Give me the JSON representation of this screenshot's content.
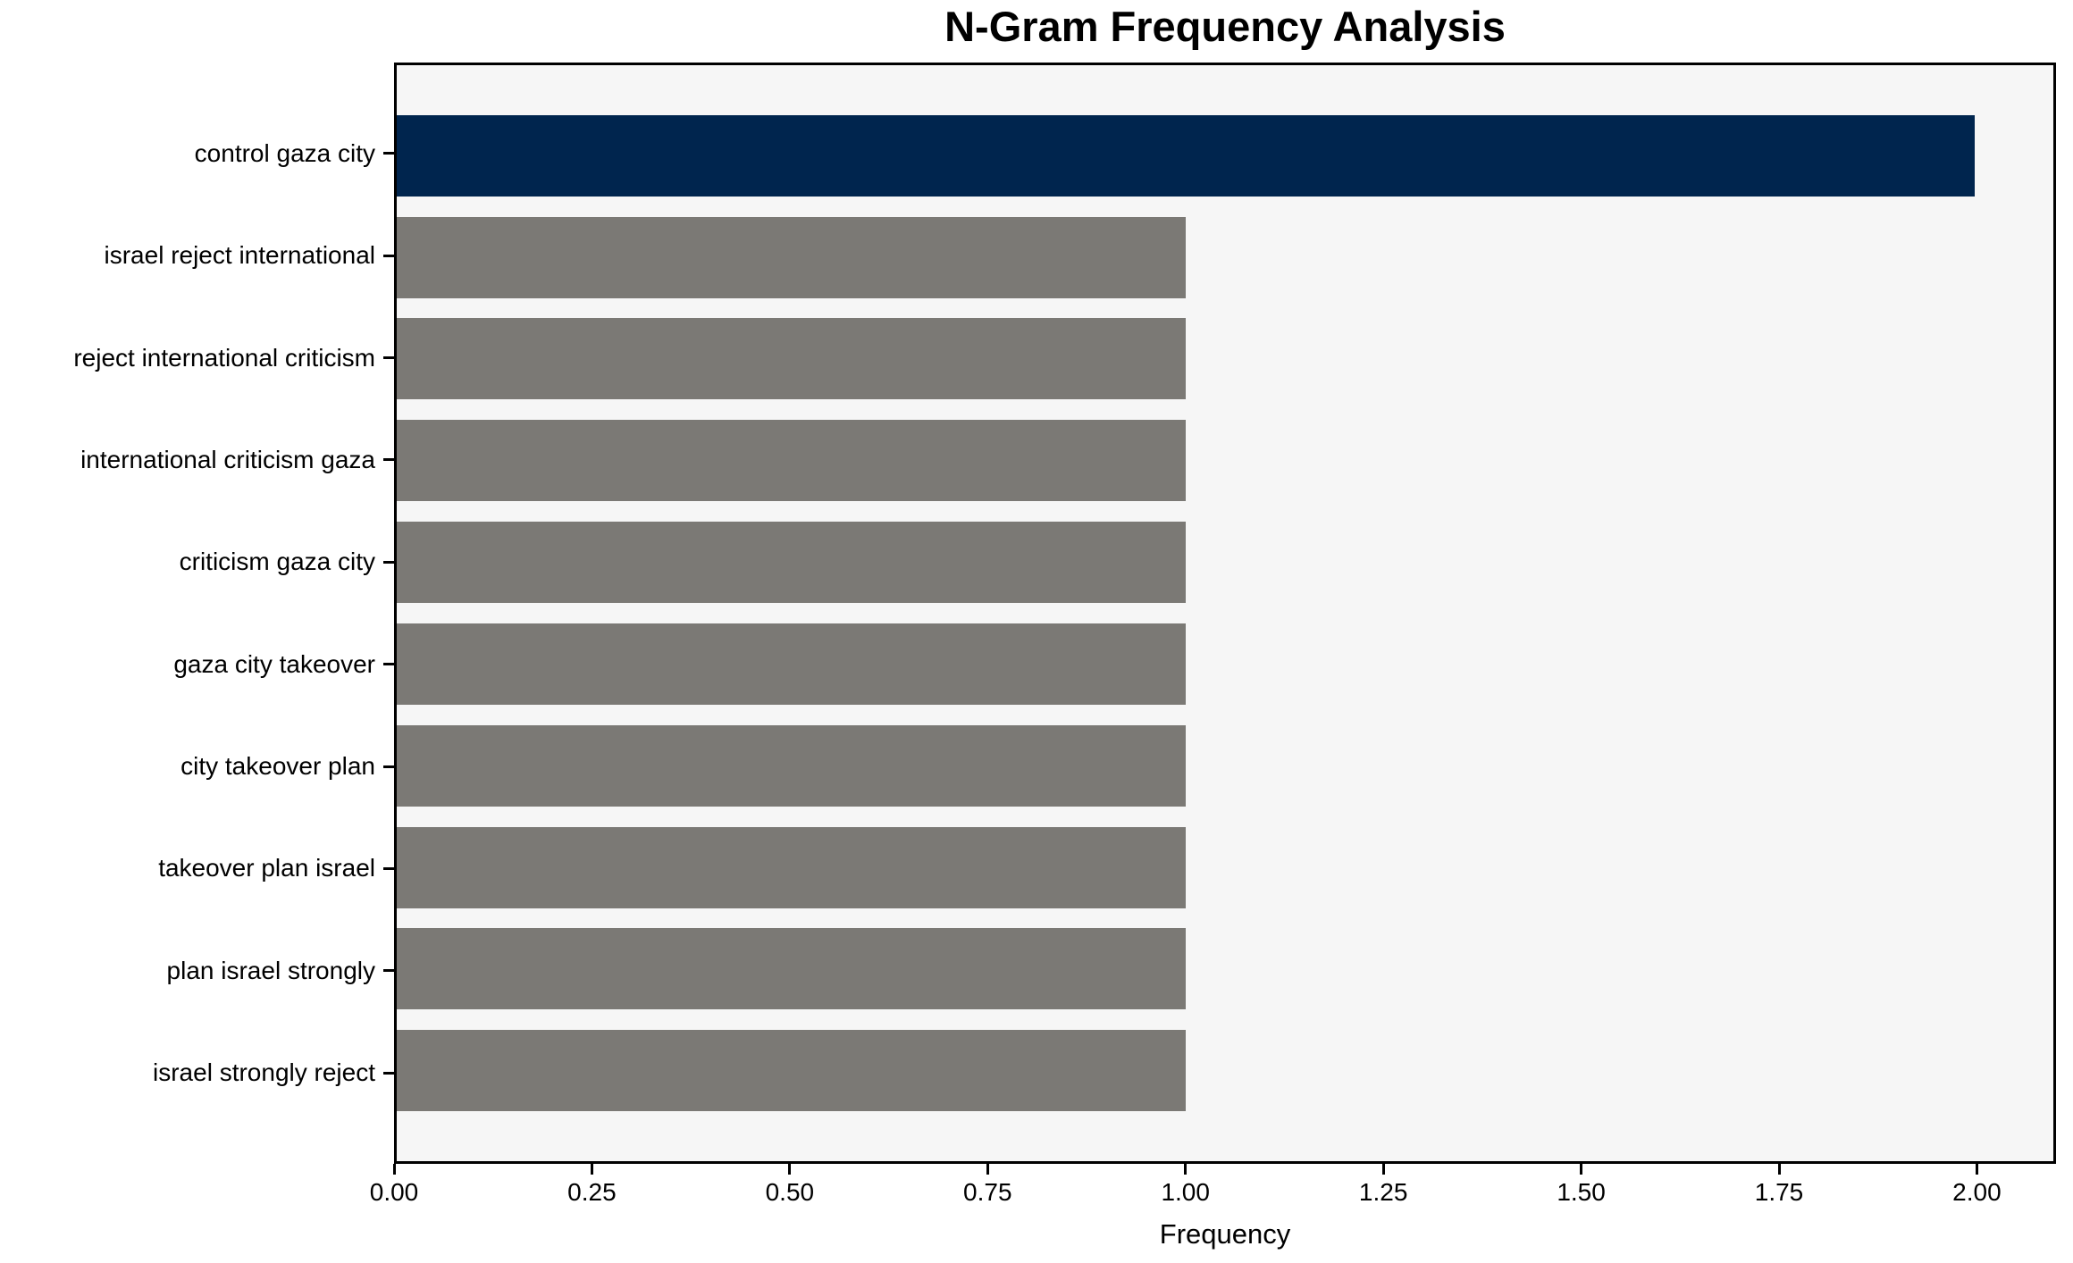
{
  "chart_data": {
    "type": "bar",
    "orientation": "horizontal",
    "title": "N-Gram Frequency Analysis",
    "xlabel": "Frequency",
    "ylabel": "",
    "categories": [
      "control gaza city",
      "israel reject international",
      "reject international criticism",
      "international criticism gaza",
      "criticism gaza city",
      "gaza city takeover",
      "city takeover plan",
      "takeover plan israel",
      "plan israel strongly",
      "israel strongly reject"
    ],
    "values": [
      2,
      1,
      1,
      1,
      1,
      1,
      1,
      1,
      1,
      1
    ],
    "xlim": [
      0,
      2.1
    ],
    "xtick_values": [
      0,
      0.25,
      0.5,
      0.75,
      1.0,
      1.25,
      1.5,
      1.75,
      2.0
    ],
    "xtick_labels": [
      "0.00",
      "0.25",
      "0.50",
      "0.75",
      "1.00",
      "1.25",
      "1.50",
      "1.75",
      "2.00"
    ],
    "grid": false,
    "legend": null,
    "colors": {
      "highlight_bar": "#00254e",
      "default_bar": "#7b7975",
      "plot_background": "#f6f6f6",
      "figure_background": "#ffffff",
      "spine": "#000000",
      "text": "#000000"
    },
    "highlight_index": 0,
    "bar_height_fraction": 0.8
  }
}
